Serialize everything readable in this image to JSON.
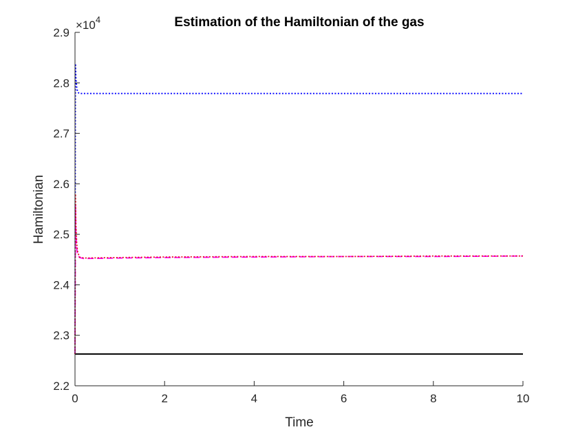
{
  "chart_data": {
    "type": "line",
    "title": "Estimation of the Hamiltonian of the gas",
    "xlabel": "Time",
    "ylabel": "Hamiltonian",
    "exponent_label": "×10",
    "exponent_power": "4",
    "xlim": [
      0,
      10
    ],
    "ylim": [
      2.2,
      2.9
    ],
    "xticks": [
      0,
      2,
      4,
      6,
      8,
      10
    ],
    "yticks": [
      2.2,
      2.3,
      2.4,
      2.5,
      2.6,
      2.7,
      2.8,
      2.9
    ],
    "xtick_labels": [
      "0",
      "2",
      "4",
      "6",
      "8",
      "10"
    ],
    "ytick_labels": [
      "2.2",
      "2.3",
      "2.4",
      "2.5",
      "2.6",
      "2.7",
      "2.8",
      "2.9"
    ],
    "grid": false,
    "series": [
      {
        "color": "#000000",
        "style": "solid",
        "x": [
          0,
          10
        ],
        "y": [
          2.263,
          2.263
        ]
      },
      {
        "color": "#0000ff",
        "style": "dotted",
        "x": [
          0,
          0.01,
          0.02,
          0.04,
          0.06,
          0.08,
          0.1,
          0.2,
          2,
          4,
          6,
          8,
          10
        ],
        "y": [
          2.263,
          2.838,
          2.81,
          2.79,
          2.782,
          2.78,
          2.779,
          2.779,
          2.779,
          2.779,
          2.779,
          2.779,
          2.779
        ]
      },
      {
        "color": "#ff00ff",
        "style": "dashed",
        "x": [
          0,
          0.01,
          0.02,
          0.04,
          0.06,
          0.1,
          0.2,
          1,
          2,
          4,
          6,
          8,
          10
        ],
        "y": [
          2.263,
          2.56,
          2.5,
          2.47,
          2.46,
          2.454,
          2.452,
          2.453,
          2.454,
          2.455,
          2.456,
          2.456,
          2.457
        ]
      },
      {
        "color": "#e01020",
        "style": "dotted",
        "x": [
          0,
          0.01,
          0.02,
          0.04,
          0.06,
          0.1,
          0.2,
          1,
          2,
          4,
          6,
          8,
          10
        ],
        "y": [
          2.263,
          2.58,
          2.52,
          2.48,
          2.465,
          2.455,
          2.453,
          2.454,
          2.455,
          2.456,
          2.456,
          2.457,
          2.457
        ]
      }
    ]
  }
}
